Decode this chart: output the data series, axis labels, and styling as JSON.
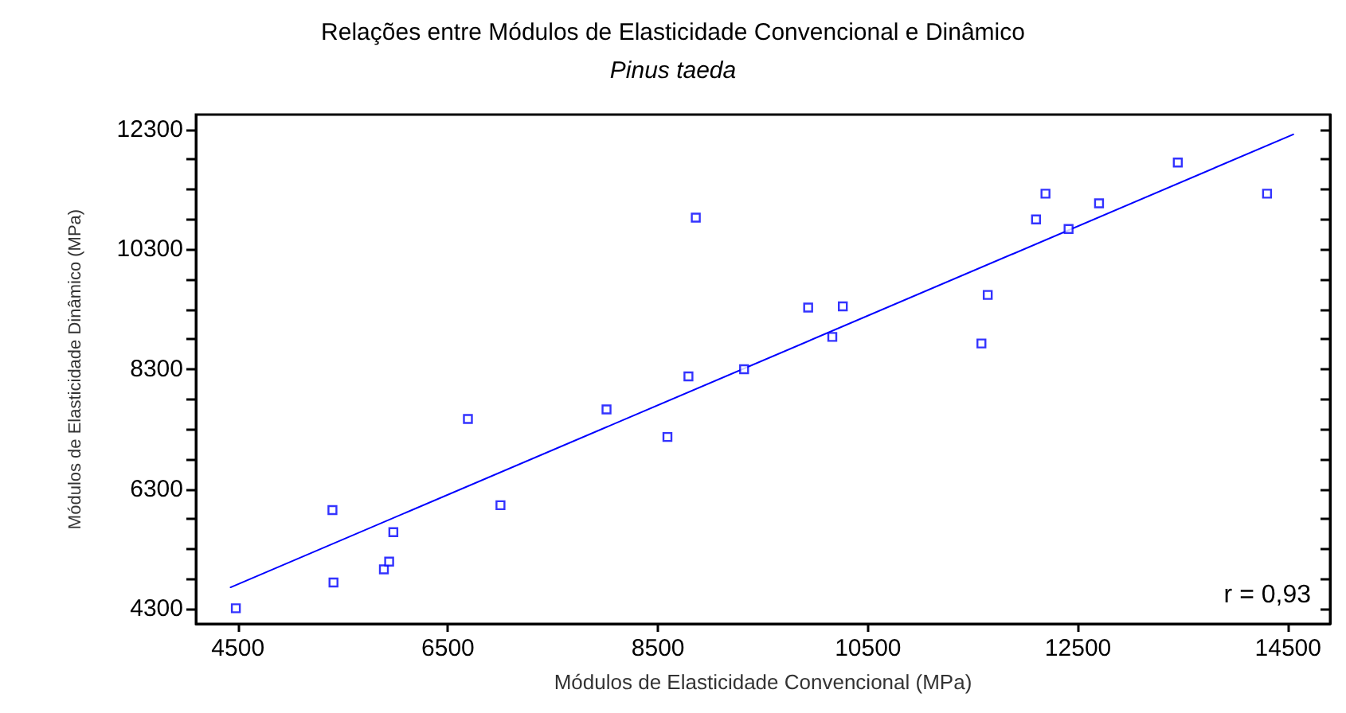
{
  "chart_data": {
    "type": "scatter",
    "title": "Relações entre Módulos de Elasticidade Convencional e Dinâmico",
    "subtitle": "Pinus taeda",
    "xlabel": "Módulos de Elasticidade Convencional (MPa)",
    "ylabel": "Módulos de Elasticidade Dinâmico (MPa)",
    "annotations": [
      "r = 0,93"
    ],
    "series": [
      {
        "color": "#0000ff",
        "marker": "square",
        "x": [
          4480,
          5400,
          5410,
          5890,
          5940,
          5980,
          6690,
          7000,
          8010,
          8590,
          8860,
          8790,
          9320,
          9930,
          10260,
          10160,
          11580,
          11640,
          12100,
          12190,
          12410,
          12700,
          13450,
          14300
        ],
        "values": [
          4310,
          5950,
          4740,
          4960,
          5090,
          5580,
          7470,
          6030,
          7630,
          7170,
          10830,
          8180,
          8300,
          9330,
          9350,
          8840,
          8730,
          9540,
          10800,
          11230,
          10640,
          11070,
          11750,
          11230
        ]
      },
      {
        "type": "line",
        "color": "#0000ff",
        "marker": "none",
        "line_style": "solid",
        "x": [
          4430,
          14550
        ],
        "values": [
          4660,
          12220
        ]
      }
    ],
    "xlim": [
      4100,
      14900
    ],
    "xticks": [
      4500,
      6500,
      8500,
      10500,
      12500,
      14500
    ],
    "ylim": [
      4050,
      12550
    ],
    "yticks": [
      4300,
      {
        "value": 4800,
        "label": null
      },
      {
        "value": 5300,
        "label": null
      },
      {
        "value": 5800,
        "label": null
      },
      6300,
      {
        "value": 6800,
        "label": null
      },
      {
        "value": 7300,
        "label": null
      },
      {
        "value": 7800,
        "label": null
      },
      8300,
      {
        "value": 8800,
        "label": null
      },
      {
        "value": 9300,
        "label": null
      },
      {
        "value": 9800,
        "label": null
      },
      10300,
      {
        "value": 10800,
        "label": null
      },
      {
        "value": 11300,
        "label": null
      },
      {
        "value": 11800,
        "label": null
      },
      12300
    ],
    "grid": false
  }
}
